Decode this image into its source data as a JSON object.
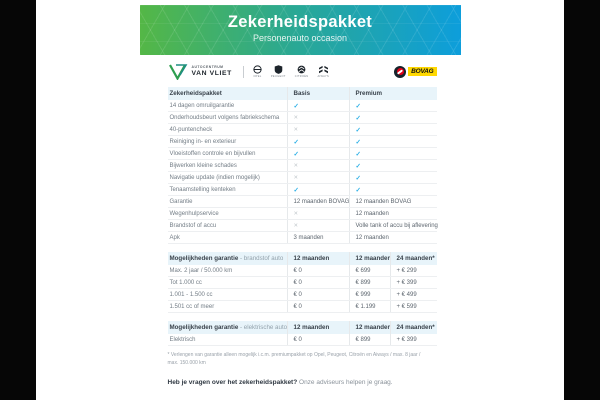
{
  "header": {
    "title": "Zekerheidspakket",
    "subtitle": "Personenauto occasion"
  },
  "logos": {
    "dealer_top": "AUTOCENTRUM",
    "dealer_bottom": "VAN VLIET",
    "brands": [
      "Opel",
      "Peugeot",
      "Citroën",
      "Aiways"
    ],
    "bovag": "BOVAG"
  },
  "marks": {
    "check": "✓",
    "cross": "✕"
  },
  "colors": {
    "gradient_left": "#54b746",
    "gradient_right": "#0d9edb",
    "check_blue": "#2fb0e6",
    "cross_gray": "#c3c9cd",
    "section_header_bg": "#e8f4fa",
    "bovag_yellow": "#ffd800"
  },
  "sections": [
    {
      "header": {
        "label": "Zekerheidspakket",
        "suffix": "",
        "cols": [
          "Basis",
          "Premium"
        ]
      },
      "rows": [
        {
          "label": "14 dagen omruilgarantie",
          "cells": [
            "check",
            "check"
          ]
        },
        {
          "label": "Onderhoudsbeurt volgens fabriekschema",
          "cells": [
            "cross",
            "check"
          ]
        },
        {
          "label": "40-puntencheck",
          "cells": [
            "cross",
            "check"
          ]
        },
        {
          "label": "Reiniging in- en exterieur",
          "cells": [
            "check",
            "check"
          ]
        },
        {
          "label": "Vloeistoffen controle en bijvullen",
          "cells": [
            "check",
            "check"
          ]
        },
        {
          "label": "Bijwerken kleine schades",
          "cells": [
            "cross",
            "check"
          ]
        },
        {
          "label": "Navigatie update (indien mogelijk)",
          "cells": [
            "cross",
            "check"
          ]
        },
        {
          "label": "Tenaamstelling kenteken",
          "cells": [
            "check",
            "check"
          ]
        },
        {
          "label": "Garantie",
          "cells": [
            "12 maanden BOVAG",
            "12 maanden BOVAG"
          ]
        },
        {
          "label": "Wegenhulpservice",
          "cells": [
            "cross",
            "12 maanden"
          ]
        },
        {
          "label": "Brandstof of accu",
          "cells": [
            "cross",
            "Volle tank of accu bij aflevering"
          ]
        },
        {
          "label": "Apk",
          "cells": [
            "3 maanden",
            "12 maanden"
          ]
        }
      ]
    },
    {
      "header": {
        "label": "Mogelijkheden garantie",
        "suffix": " - brandstof auto",
        "cols": [
          "12 maanden",
          "12 maanden",
          "24 maanden*"
        ]
      },
      "rows": [
        {
          "label": "Max. 2 jaar / 50.000 km",
          "cells": [
            "€ 0",
            "€ 699",
            "+ € 299"
          ]
        },
        {
          "label": "Tot 1.000 cc",
          "cells": [
            "€ 0",
            "€ 899",
            "+ € 399"
          ]
        },
        {
          "label": "1.001 - 1.500 cc",
          "cells": [
            "€ 0",
            "€ 999",
            "+ € 499"
          ]
        },
        {
          "label": "1.501 cc of meer",
          "cells": [
            "€ 0",
            "€ 1.199",
            "+ € 599"
          ]
        }
      ]
    },
    {
      "header": {
        "label": "Mogelijkheden garantie",
        "suffix": " - elektrische auto",
        "cols": [
          "12 maanden",
          "12 maanden",
          "24 maanden*"
        ]
      },
      "rows": [
        {
          "label": "Elektrisch",
          "cells": [
            "€ 0",
            "€ 899",
            "+ € 399"
          ]
        }
      ]
    }
  ],
  "footnote": "* Verlengen van garantie alleen mogelijk i.c.m. premiumpakket op Opel, Peugeot, Citroën en Aiways / max. 8 jaar / max. 150.000 km",
  "footer": {
    "question": "Heb je vragen over het zekerheidspakket?",
    "answer": "Onze adviseurs helpen je graag."
  }
}
